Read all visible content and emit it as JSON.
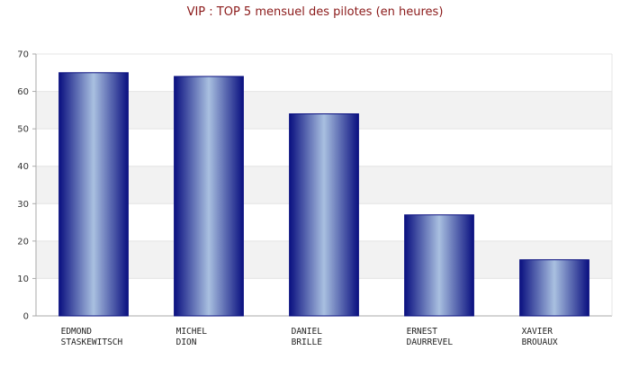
{
  "chart_data": {
    "type": "bar",
    "title": "VIP : TOP 5 mensuel des pilotes (en heures)",
    "xlabel": "",
    "ylabel": "",
    "categories": [
      [
        "EDMOND",
        "STASKEWITSCH"
      ],
      [
        "MICHEL",
        "DION"
      ],
      [
        "DANIEL",
        "BRILLE"
      ],
      [
        "ERNEST",
        "DAURREVEL"
      ],
      [
        "XAVIER",
        "BROUAUX"
      ]
    ],
    "values": [
      65,
      64,
      54,
      27,
      15
    ],
    "ylim": [
      0,
      70
    ],
    "yticks": [
      0,
      10,
      20,
      30,
      40,
      50,
      60,
      70
    ],
    "grid": true,
    "legend": "none",
    "colors": {
      "bar_dark": "#0a1080",
      "bar_light": "#a9c0e0",
      "band_alt": "#f2f2f2",
      "axis": "#aaaaaa",
      "grid": "#e4e4e4",
      "title": "#8b1a1a"
    }
  }
}
